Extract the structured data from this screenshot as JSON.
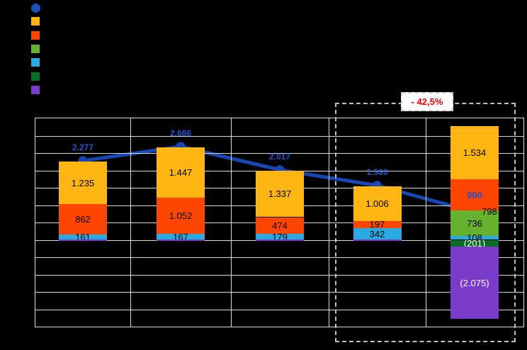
{
  "annotation": {
    "text": "- 42,5%",
    "color": "#EE0000"
  },
  "legend": {
    "items": [
      {
        "name": "blue-line-series",
        "marker": "circle",
        "color": "#1E4FB4",
        "label": ""
      },
      {
        "name": "amber-series",
        "marker": "square",
        "color": "#FFB612",
        "label": ""
      },
      {
        "name": "orange-red-series",
        "marker": "square",
        "color": "#FF4500",
        "label": ""
      },
      {
        "name": "green-series",
        "marker": "square",
        "color": "#66B22E",
        "label": ""
      },
      {
        "name": "light-blue-series",
        "marker": "square",
        "color": "#29ABE2",
        "label": ""
      },
      {
        "name": "dark-green-series",
        "marker": "square",
        "color": "#0A6E25",
        "label": ""
      },
      {
        "name": "purple-series",
        "marker": "square",
        "color": "#7A3BC8",
        "label": ""
      }
    ]
  },
  "chart_data": {
    "type": "combo-stacked-bar-line",
    "categories": [
      "",
      "",
      "",
      "",
      ""
    ],
    "ylim": [
      -2500,
      3500
    ],
    "ytick_step": 500,
    "grid": true,
    "axis_tick_labels_visible": false,
    "bar_series": [
      {
        "name": "amber",
        "color": "#FFB612",
        "label_color": "#000000",
        "values": [
          1235,
          1447,
          1337,
          1006,
          1534
        ],
        "labels": [
          "1.235",
          "1.447",
          "1.337",
          "1.006",
          "1.534"
        ]
      },
      {
        "name": "orange-red",
        "color": "#FF4500",
        "label_color": "#000000",
        "values": [
          862,
          1052,
          474,
          197,
          900
        ],
        "labels": [
          "862",
          "1.052",
          "474",
          "197",
          "900"
        ],
        "label_overrides": {
          "4": {
            "color": "#1E4FD0",
            "bold": true
          }
        }
      },
      {
        "name": "green",
        "color": "#66B22E",
        "label_color": "#000000",
        "values": [
          0,
          0,
          0,
          0,
          736
        ],
        "labels": [
          "",
          "",
          "",
          "",
          "736"
        ]
      },
      {
        "name": "light-blue",
        "color": "#29ABE2",
        "label_color": "#000000",
        "values": [
          161,
          167,
          179,
          342,
          108
        ],
        "labels": [
          "161",
          "167",
          "179",
          "342",
          "108"
        ]
      },
      {
        "name": "dark-green",
        "color": "#0A6E25",
        "label_color": "#FFFFFF",
        "values": [
          0,
          0,
          0,
          0,
          -201
        ],
        "labels": [
          "",
          "",
          "",
          "",
          "(201)"
        ]
      },
      {
        "name": "purple",
        "color": "#7A3BC8",
        "label_color": "#FFFFFF",
        "values": [
          0,
          0,
          0,
          0,
          -2075
        ],
        "labels": [
          "",
          "",
          "",
          "",
          "(2.075)"
        ]
      }
    ],
    "line_series": {
      "name": "blue-line",
      "color": "#1747B4",
      "values": [
        2277,
        2686,
        2017,
        1566,
        798
      ],
      "labels": [
        "2.277",
        "2.686",
        "2.017",
        "1.566",
        "798"
      ],
      "label_color": "#2255CC",
      "last_label_color": "#000000"
    },
    "baseline_slivers": [
      true,
      true,
      true,
      true,
      false
    ],
    "highlight": {
      "text": "- 42,5%",
      "category_indexes": [
        3,
        4
      ]
    }
  }
}
